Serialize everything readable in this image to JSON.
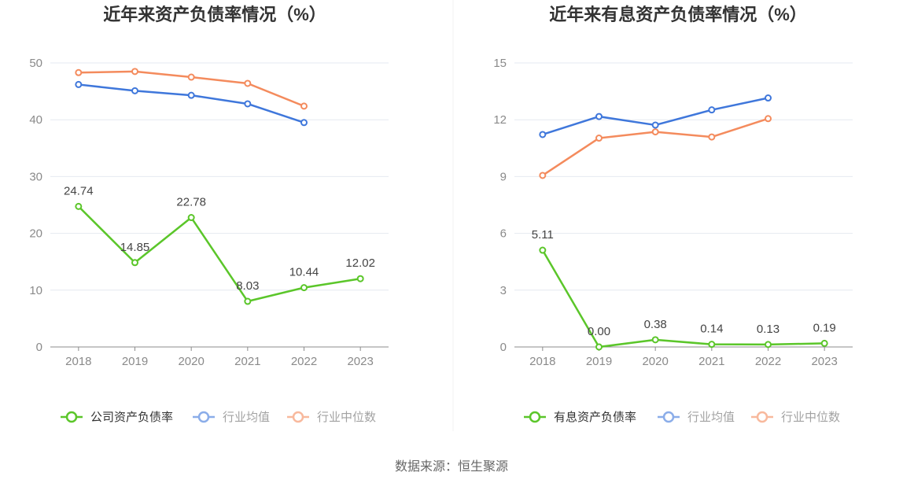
{
  "source": "数据来源：恒生聚源",
  "chart_data": [
    {
      "type": "line",
      "title": "近年来资产负债率情况（%）",
      "categories": [
        "2018",
        "2019",
        "2020",
        "2021",
        "2022",
        "2023"
      ],
      "ylim": [
        0,
        50
      ],
      "yticks": [
        0,
        10,
        20,
        30,
        40,
        50
      ],
      "grid": true,
      "legend_position": "bottom",
      "series": [
        {
          "name": "公司资产负债率",
          "color": "#5BC62A",
          "values": [
            24.74,
            14.85,
            22.78,
            8.03,
            10.44,
            12.02
          ],
          "labels": [
            "24.74",
            "14.85",
            "22.78",
            "8.03",
            "10.44",
            "12.02"
          ]
        },
        {
          "name": "行业均值",
          "color": "#3F77DB",
          "values": [
            46.2,
            45.1,
            44.3,
            42.8,
            39.5,
            null
          ]
        },
        {
          "name": "行业中位数",
          "color": "#F48B5D",
          "values": [
            48.3,
            48.5,
            47.5,
            46.4,
            42.4,
            null
          ]
        }
      ]
    },
    {
      "type": "line",
      "title": "近年来有息资产负债率情况（%）",
      "categories": [
        "2018",
        "2019",
        "2020",
        "2021",
        "2022",
        "2023"
      ],
      "ylim": [
        0,
        15
      ],
      "yticks": [
        0,
        3,
        6,
        9,
        12,
        15
      ],
      "grid": true,
      "legend_position": "bottom",
      "series": [
        {
          "name": "有息资产负债率",
          "color": "#5BC62A",
          "values": [
            5.11,
            0.0,
            0.38,
            0.14,
            0.13,
            0.19
          ],
          "labels": [
            "5.11",
            "0.00",
            "0.38",
            "0.14",
            "0.13",
            "0.19"
          ]
        },
        {
          "name": "行业均值",
          "color": "#3F77DB",
          "values": [
            11.22,
            12.17,
            11.72,
            12.52,
            13.15,
            null
          ]
        },
        {
          "name": "行业中位数",
          "color": "#F48B5D",
          "values": [
            9.06,
            11.03,
            11.36,
            11.09,
            12.06,
            null
          ]
        }
      ]
    }
  ]
}
